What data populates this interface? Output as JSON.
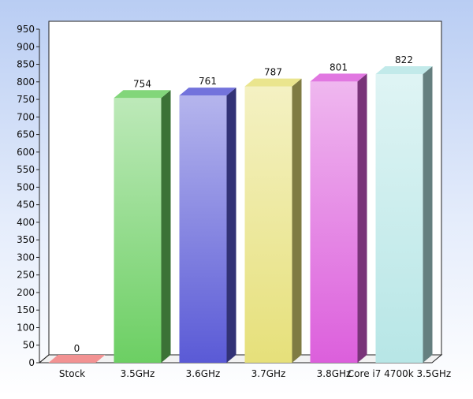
{
  "chart_data": {
    "type": "bar",
    "categories": [
      "Stock",
      "3.5GHz",
      "3.6GHz",
      "3.7GHz",
      "3.8GHz",
      "Core i7 4700k 3.5GHz"
    ],
    "values": [
      0,
      754,
      761,
      787,
      801,
      822
    ],
    "data_labels": [
      "0",
      "754",
      "761",
      "787",
      "801",
      "822"
    ],
    "colors": [
      "#f07f7f",
      "#6ccf63",
      "#5a5ad6",
      "#e6e07a",
      "#dc5fdc",
      "#b7e6e6"
    ],
    "ylim": [
      0,
      950
    ],
    "yticks": [
      "0",
      "50",
      "100",
      "150",
      "200",
      "250",
      "300",
      "350",
      "400",
      "450",
      "500",
      "550",
      "600",
      "650",
      "700",
      "750",
      "800",
      "850",
      "900",
      "950"
    ],
    "title": "",
    "xlabel": "",
    "ylabel": "",
    "grid": false,
    "bar_style": "3d"
  }
}
